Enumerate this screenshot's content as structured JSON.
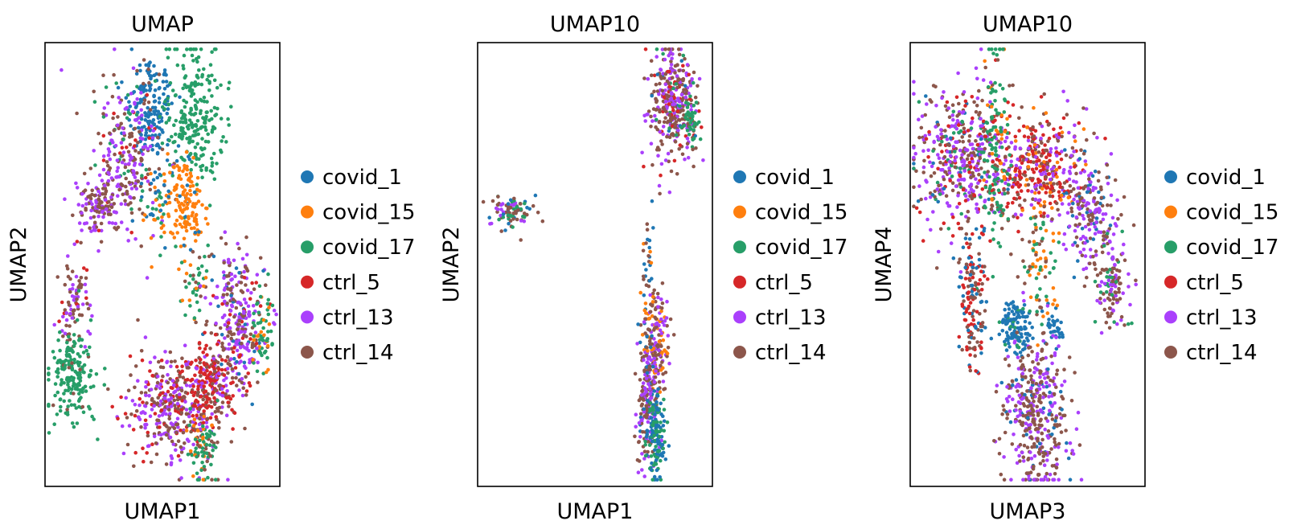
{
  "legend_labels": [
    "covid_1",
    "covid_15",
    "covid_17",
    "ctrl_5",
    "ctrl_13",
    "ctrl_14"
  ],
  "colors": {
    "covid_1": "#1f77b4",
    "covid_15": "#ff7f0e",
    "covid_17": "#279e68",
    "ctrl_5": "#d62728",
    "ctrl_13": "#aa40fc",
    "ctrl_14": "#8c564b"
  },
  "chart_data": [
    {
      "type": "scatter",
      "title": "UMAP",
      "xlabel": "UMAP1",
      "ylabel": "UMAP2",
      "xticks": "none",
      "yticks": "none",
      "grid": false,
      "legend": "right",
      "xlim": [
        0,
        1
      ],
      "ylim": [
        0,
        1
      ],
      "clusters": [
        {
          "cx": 0.45,
          "cy": 0.85,
          "sx": 0.05,
          "sy": 0.06,
          "n": 170,
          "mix": {
            "covid_1": 1
          }
        },
        {
          "cx": 0.64,
          "cy": 0.83,
          "sx": 0.06,
          "sy": 0.08,
          "n": 240,
          "mix": {
            "covid_17": 1
          }
        },
        {
          "cx": 0.34,
          "cy": 0.74,
          "sx": 0.07,
          "sy": 0.09,
          "n": 260,
          "mix": {
            "ctrl_13": 0.45,
            "ctrl_14": 0.35,
            "ctrl_5": 0.1,
            "covid_17": 0.1
          }
        },
        {
          "cx": 0.24,
          "cy": 0.64,
          "sx": 0.05,
          "sy": 0.03,
          "n": 120,
          "mix": {
            "ctrl_13": 0.5,
            "ctrl_14": 0.5
          }
        },
        {
          "cx": 0.6,
          "cy": 0.64,
          "sx": 0.045,
          "sy": 0.06,
          "n": 140,
          "mix": {
            "covid_15": 0.9,
            "covid_1": 0.1
          }
        },
        {
          "cx": 0.48,
          "cy": 0.63,
          "sx": 0.03,
          "sy": 0.06,
          "n": 50,
          "mix": {
            "covid_1": 0.4,
            "covid_17": 0.3,
            "covid_15": 0.3
          }
        },
        {
          "cx": 0.64,
          "cy": 0.45,
          "sx": 0.03,
          "sy": 0.04,
          "n": 40,
          "mix": {
            "covid_17": 0.5,
            "covid_15": 0.3,
            "ctrl_14": 0.2
          }
        },
        {
          "cx": 0.12,
          "cy": 0.42,
          "sx": 0.03,
          "sy": 0.05,
          "n": 90,
          "mix": {
            "ctrl_13": 0.45,
            "ctrl_14": 0.45,
            "ctrl_5": 0.1
          }
        },
        {
          "cx": 0.12,
          "cy": 0.25,
          "sx": 0.05,
          "sy": 0.05,
          "n": 180,
          "mix": {
            "covid_17": 0.95,
            "ctrl_14": 0.05
          }
        },
        {
          "cx": 0.82,
          "cy": 0.37,
          "sx": 0.06,
          "sy": 0.08,
          "n": 300,
          "mix": {
            "ctrl_13": 0.45,
            "ctrl_14": 0.35,
            "ctrl_5": 0.1,
            "covid_1": 0.1
          }
        },
        {
          "cx": 0.92,
          "cy": 0.35,
          "sx": 0.02,
          "sy": 0.05,
          "n": 60,
          "mix": {
            "covid_17": 0.7,
            "covid_15": 0.3
          }
        },
        {
          "cx": 0.54,
          "cy": 0.18,
          "sx": 0.1,
          "sy": 0.06,
          "n": 380,
          "mix": {
            "ctrl_14": 0.45,
            "ctrl_13": 0.35,
            "ctrl_5": 0.2
          }
        },
        {
          "cx": 0.7,
          "cy": 0.23,
          "sx": 0.05,
          "sy": 0.05,
          "n": 200,
          "mix": {
            "ctrl_5": 0.6,
            "ctrl_14": 0.25,
            "ctrl_13": 0.15
          }
        },
        {
          "cx": 0.68,
          "cy": 0.08,
          "sx": 0.03,
          "sy": 0.04,
          "n": 80,
          "mix": {
            "covid_17": 0.6,
            "covid_15": 0.25,
            "ctrl_14": 0.15
          }
        }
      ]
    },
    {
      "type": "scatter",
      "title": "UMAP10",
      "xlabel": "UMAP1",
      "ylabel": "UMAP2",
      "xticks": "none",
      "yticks": "none",
      "grid": false,
      "legend": "right",
      "xlim": [
        0,
        1
      ],
      "ylim": [
        0,
        1
      ],
      "clusters": [
        {
          "cx": 0.83,
          "cy": 0.86,
          "sx": 0.05,
          "sy": 0.06,
          "n": 380,
          "mix": {
            "ctrl_14": 0.45,
            "ctrl_13": 0.3,
            "ctrl_5": 0.15,
            "covid_17": 0.05,
            "covid_1": 0.05
          }
        },
        {
          "cx": 0.91,
          "cy": 0.83,
          "sx": 0.02,
          "sy": 0.02,
          "n": 40,
          "mix": {
            "covid_17": 1
          }
        },
        {
          "cx": 0.15,
          "cy": 0.62,
          "sx": 0.05,
          "sy": 0.02,
          "n": 90,
          "mix": {
            "ctrl_14": 0.4,
            "covid_17": 0.3,
            "ctrl_13": 0.15,
            "covid_1": 0.15
          }
        },
        {
          "cx": 0.72,
          "cy": 0.48,
          "sx": 0.015,
          "sy": 0.08,
          "n": 40,
          "mix": {
            "covid_1": 0.4,
            "covid_15": 0.3,
            "ctrl_14": 0.3
          }
        },
        {
          "cx": 0.76,
          "cy": 0.32,
          "sx": 0.025,
          "sy": 0.06,
          "n": 160,
          "mix": {
            "ctrl_14": 0.4,
            "ctrl_13": 0.3,
            "covid_15": 0.3
          }
        },
        {
          "cx": 0.72,
          "cy": 0.2,
          "sx": 0.02,
          "sy": 0.08,
          "n": 180,
          "mix": {
            "ctrl_14": 0.4,
            "ctrl_13": 0.4,
            "covid_1": 0.2
          }
        },
        {
          "cx": 0.76,
          "cy": 0.12,
          "sx": 0.02,
          "sy": 0.05,
          "n": 140,
          "mix": {
            "covid_1": 0.55,
            "covid_17": 0.45
          }
        }
      ]
    },
    {
      "type": "scatter",
      "title": "UMAP10",
      "xlabel": "UMAP3",
      "ylabel": "UMAP4",
      "xticks": "none",
      "yticks": "none",
      "grid": false,
      "legend": "right",
      "xlim": [
        0,
        1
      ],
      "ylim": [
        0,
        1
      ],
      "clusters": [
        {
          "cx": 0.23,
          "cy": 0.74,
          "sx": 0.1,
          "sy": 0.08,
          "n": 480,
          "mix": {
            "ctrl_13": 0.4,
            "ctrl_14": 0.3,
            "ctrl_5": 0.15,
            "covid_17": 0.1,
            "covid_1": 0.05
          }
        },
        {
          "cx": 0.55,
          "cy": 0.72,
          "sx": 0.1,
          "sy": 0.06,
          "n": 380,
          "mix": {
            "ctrl_5": 0.4,
            "ctrl_14": 0.3,
            "ctrl_13": 0.2,
            "covid_15": 0.1
          }
        },
        {
          "cx": 0.37,
          "cy": 0.78,
          "sx": 0.03,
          "sy": 0.12,
          "n": 120,
          "mix": {
            "covid_17": 0.7,
            "covid_15": 0.15,
            "ctrl_14": 0.15
          }
        },
        {
          "cx": 0.77,
          "cy": 0.62,
          "sx": 0.06,
          "sy": 0.06,
          "n": 200,
          "mix": {
            "ctrl_13": 0.4,
            "ctrl_14": 0.4,
            "covid_1": 0.2
          }
        },
        {
          "cx": 0.86,
          "cy": 0.46,
          "sx": 0.04,
          "sy": 0.05,
          "n": 120,
          "mix": {
            "ctrl_14": 0.5,
            "ctrl_13": 0.3,
            "covid_17": 0.2
          }
        },
        {
          "cx": 0.27,
          "cy": 0.43,
          "sx": 0.03,
          "sy": 0.08,
          "n": 160,
          "mix": {
            "ctrl_5": 0.4,
            "ctrl_14": 0.3,
            "covid_1": 0.3
          }
        },
        {
          "cx": 0.45,
          "cy": 0.36,
          "sx": 0.04,
          "sy": 0.03,
          "n": 120,
          "mix": {
            "covid_1": 0.85,
            "covid_17": 0.15
          }
        },
        {
          "cx": 0.62,
          "cy": 0.35,
          "sx": 0.02,
          "sy": 0.02,
          "n": 30,
          "mix": {
            "covid_1": 1
          }
        },
        {
          "cx": 0.54,
          "cy": 0.17,
          "sx": 0.07,
          "sy": 0.09,
          "n": 420,
          "mix": {
            "ctrl_14": 0.5,
            "ctrl_13": 0.4,
            "covid_1": 0.1
          }
        },
        {
          "cx": 0.56,
          "cy": 0.5,
          "sx": 0.03,
          "sy": 0.08,
          "n": 80,
          "mix": {
            "covid_15": 0.5,
            "covid_17": 0.3,
            "ctrl_14": 0.2
          }
        }
      ]
    }
  ]
}
